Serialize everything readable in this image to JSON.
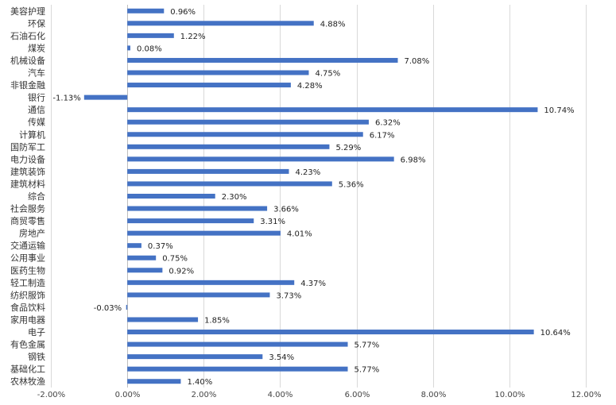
{
  "chart_data": {
    "type": "bar",
    "orientation": "horizontal",
    "categories": [
      "美容护理",
      "环保",
      "石油石化",
      "煤炭",
      "机械设备",
      "汽车",
      "非银金融",
      "银行",
      "通信",
      "传媒",
      "计算机",
      "国防军工",
      "电力设备",
      "建筑装饰",
      "建筑材料",
      "综合",
      "社会服务",
      "商贸零售",
      "房地产",
      "交通运输",
      "公用事业",
      "医药生物",
      "轻工制造",
      "纺织服饰",
      "食品饮料",
      "家用电器",
      "电子",
      "有色金属",
      "钢铁",
      "基础化工",
      "农林牧渔"
    ],
    "values": [
      0.96,
      4.88,
      1.22,
      0.08,
      7.08,
      4.75,
      4.28,
      -1.13,
      10.74,
      6.32,
      6.17,
      5.29,
      6.98,
      4.23,
      5.36,
      2.3,
      3.66,
      3.31,
      4.01,
      0.37,
      0.75,
      0.92,
      4.37,
      3.73,
      -0.03,
      1.85,
      10.64,
      5.77,
      3.54,
      5.77,
      1.4
    ],
    "data_labels": [
      "0.96%",
      "4.88%",
      "1.22%",
      "0.08%",
      "7.08%",
      "4.75%",
      "4.28%",
      "-1.13%",
      "10.74%",
      "6.32%",
      "6.17%",
      "5.29%",
      "6.98%",
      "4.23%",
      "5.36%",
      "2.30%",
      "3.66%",
      "3.31%",
      "4.01%",
      "0.37%",
      "0.75%",
      "0.92%",
      "4.37%",
      "3.73%",
      "-0.03%",
      "1.85%",
      "10.64%",
      "5.77%",
      "3.54%",
      "5.77%",
      "1.40%"
    ],
    "xlim": [
      -2,
      12
    ],
    "x_ticks": [
      -2,
      0,
      2,
      4,
      6,
      8,
      10,
      12
    ],
    "x_tick_labels": [
      "-2.00%",
      "0.00%",
      "2.00%",
      "4.00%",
      "6.00%",
      "8.00%",
      "10.00%",
      "12.00%"
    ],
    "grid": true,
    "title": "",
    "xlabel": "",
    "ylabel": "",
    "bar_color": "#4472C4",
    "grid_color": "#d9d9d9"
  }
}
